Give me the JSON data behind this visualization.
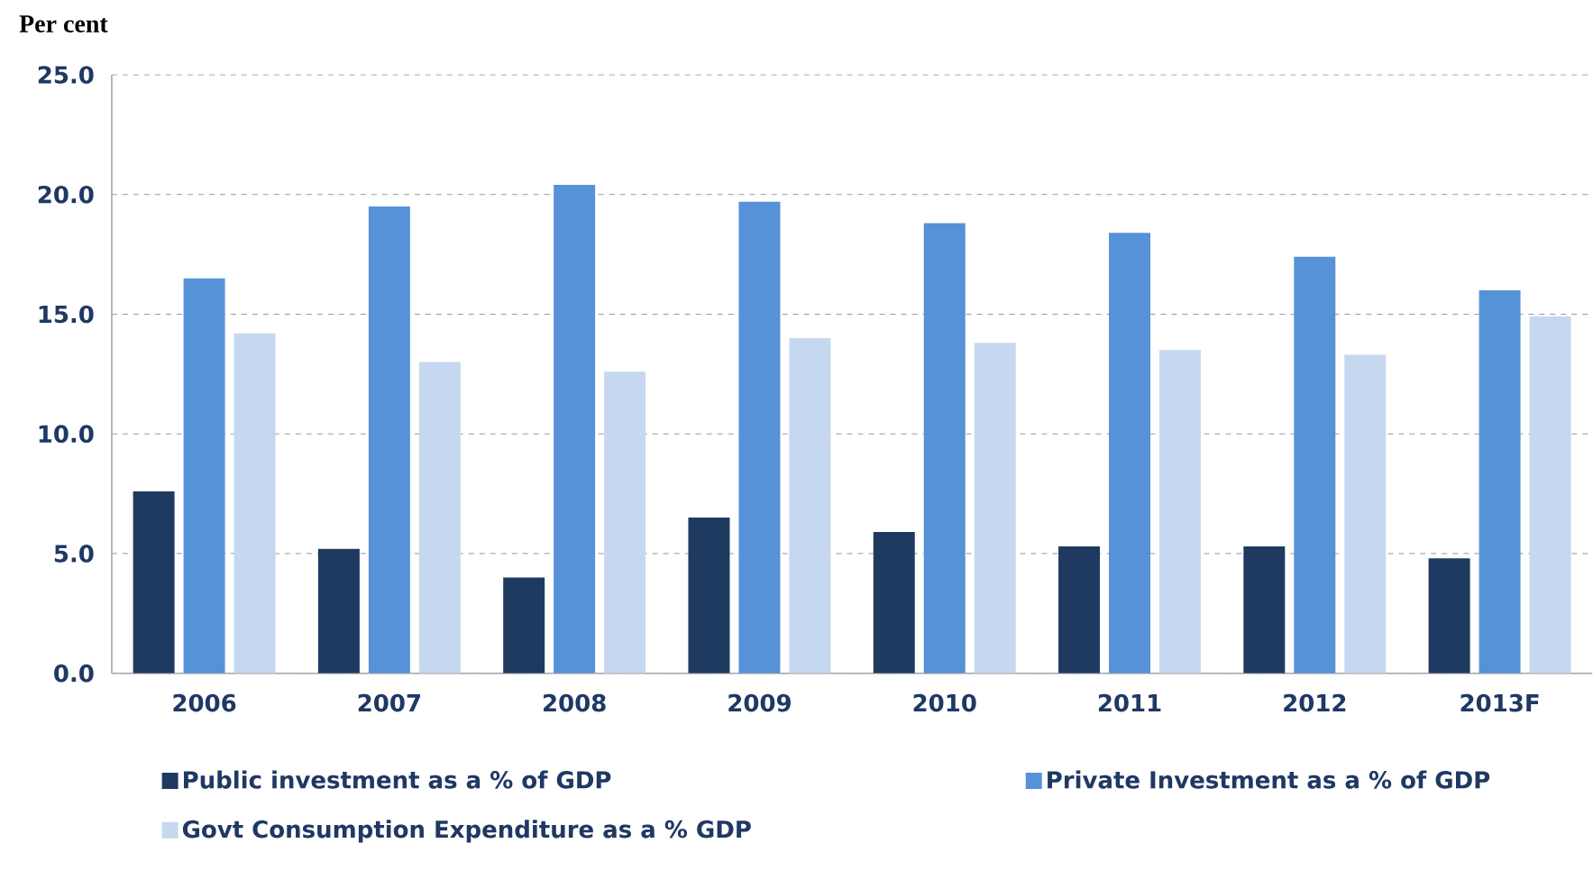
{
  "chart_data": {
    "type": "bar",
    "ylabel": "Per cent",
    "categories": [
      "2006",
      "2007",
      "2008",
      "2009",
      "2010",
      "2011",
      "2012",
      "2013F"
    ],
    "series": [
      {
        "name": "Public investment as a % of GDP",
        "color": "#1f3a60",
        "values": [
          7.6,
          5.2,
          4.0,
          6.5,
          5.9,
          5.3,
          5.3,
          4.8
        ]
      },
      {
        "name": "Private Investment as a % of GDP",
        "color": "#5592d8",
        "values": [
          16.5,
          19.5,
          20.4,
          19.7,
          18.8,
          18.4,
          17.4,
          16.0
        ]
      },
      {
        "name": "Govt Consumption Expenditure as a % GDP",
        "color": "#c6d7f0",
        "values": [
          14.2,
          13.0,
          12.6,
          14.0,
          13.8,
          13.5,
          13.3,
          14.9
        ]
      }
    ],
    "ylim": [
      0,
      25
    ],
    "yticks": [
      {
        "value": 0,
        "label": "0.0"
      },
      {
        "value": 5,
        "label": "5.0"
      },
      {
        "value": 10,
        "label": "10.0"
      },
      {
        "value": 15,
        "label": "15.0"
      },
      {
        "value": 20,
        "label": "20.0"
      },
      {
        "value": 25,
        "label": "25.0"
      }
    ],
    "grid": "y",
    "legend": "bottom"
  }
}
